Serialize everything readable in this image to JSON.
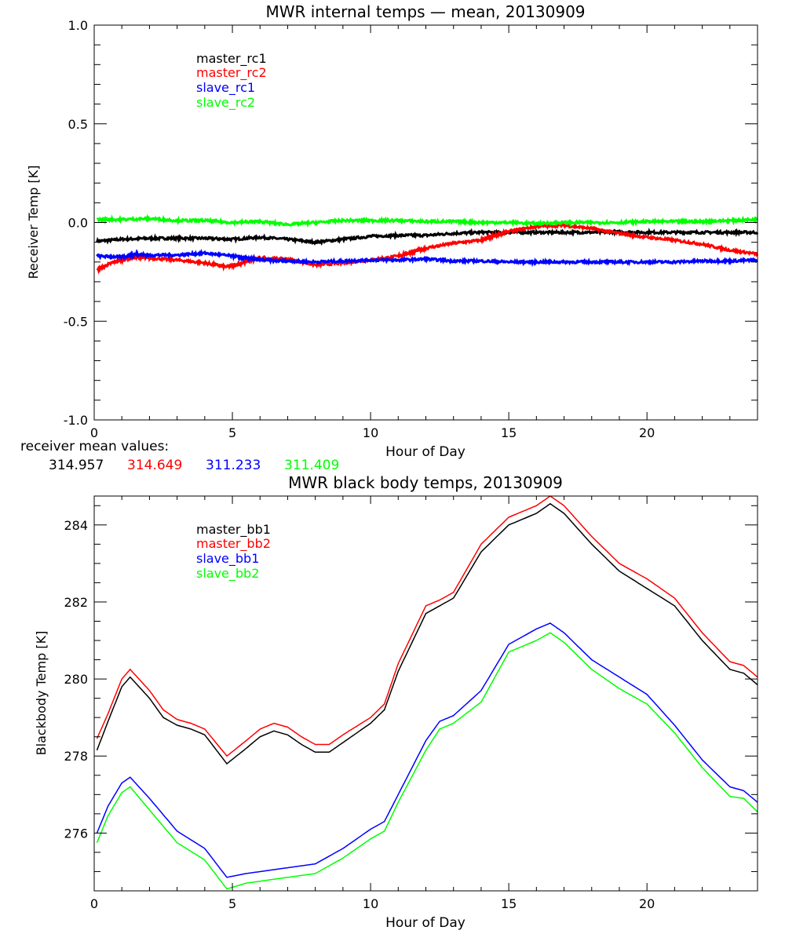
{
  "chart_data": [
    {
      "type": "line",
      "title": "MWR internal temps — mean, 20130909",
      "xlabel": "Hour of Day",
      "ylabel": "Receiver Temp [K]",
      "xlim": [
        0,
        24
      ],
      "ylim": [
        -1.0,
        1.0
      ],
      "x_ticks": [
        "0",
        "5",
        "10",
        "15",
        "20"
      ],
      "y_ticks": [
        "-1.0",
        "-0.5",
        "0.0",
        "0.5",
        "1.0"
      ],
      "grid": false,
      "legend_position": "top-left",
      "series": [
        {
          "name": "master_rc1",
          "color": "#000000",
          "x": [
            0.1,
            1,
            2,
            3,
            4,
            5,
            6,
            7,
            8,
            9,
            10,
            11,
            12,
            13,
            14,
            15,
            16,
            17,
            18,
            19,
            20,
            21,
            22,
            23,
            24
          ],
          "y": [
            -0.095,
            -0.085,
            -0.08,
            -0.08,
            -0.08,
            -0.085,
            -0.075,
            -0.085,
            -0.1,
            -0.085,
            -0.07,
            -0.065,
            -0.065,
            -0.055,
            -0.05,
            -0.05,
            -0.05,
            -0.05,
            -0.05,
            -0.048,
            -0.05,
            -0.05,
            -0.05,
            -0.05,
            -0.05
          ]
        },
        {
          "name": "master_rc2",
          "color": "#ff0000",
          "x": [
            0.1,
            0.7,
            1.5,
            2,
            3,
            4,
            4.8,
            5.5,
            6,
            7,
            8,
            9,
            10,
            11,
            11.5,
            12,
            13,
            14,
            14.5,
            15,
            16,
            17,
            18,
            19,
            20,
            21,
            22,
            23,
            24
          ],
          "y": [
            -0.24,
            -0.2,
            -0.175,
            -0.18,
            -0.19,
            -0.205,
            -0.225,
            -0.2,
            -0.18,
            -0.185,
            -0.215,
            -0.205,
            -0.19,
            -0.17,
            -0.15,
            -0.13,
            -0.105,
            -0.09,
            -0.065,
            -0.045,
            -0.02,
            -0.015,
            -0.03,
            -0.055,
            -0.075,
            -0.09,
            -0.11,
            -0.14,
            -0.16
          ]
        },
        {
          "name": "slave_rc1",
          "color": "#0000ff",
          "x": [
            0.1,
            1,
            1.5,
            2,
            3,
            4,
            5,
            5.5,
            6,
            7,
            8,
            9,
            10,
            11,
            12,
            13,
            14,
            15,
            16,
            17,
            18,
            19,
            20,
            21,
            22,
            23,
            24
          ],
          "y": [
            -0.17,
            -0.175,
            -0.16,
            -0.165,
            -0.165,
            -0.155,
            -0.17,
            -0.18,
            -0.19,
            -0.195,
            -0.2,
            -0.195,
            -0.19,
            -0.19,
            -0.185,
            -0.195,
            -0.195,
            -0.2,
            -0.2,
            -0.2,
            -0.2,
            -0.2,
            -0.2,
            -0.2,
            -0.195,
            -0.195,
            -0.19
          ]
        },
        {
          "name": "slave_rc2",
          "color": "#00ff00",
          "x": [
            0.1,
            1,
            2,
            3,
            4,
            5,
            6,
            7,
            8,
            9,
            10,
            11,
            12,
            13,
            14,
            15,
            16,
            17,
            18,
            19,
            20,
            21,
            22,
            23,
            24
          ],
          "y": [
            0.015,
            0.015,
            0.02,
            0.01,
            0.01,
            0.0,
            0.005,
            -0.01,
            0.0,
            0.01,
            0.01,
            0.01,
            0.005,
            0.005,
            0.0,
            0.0,
            -0.005,
            0.0,
            0.0,
            0.0,
            0.005,
            0.005,
            0.005,
            0.01,
            0.015
          ]
        }
      ],
      "annotation_label": "receiver mean values:",
      "annotation_values": [
        {
          "text": "314.957",
          "color": "#000000"
        },
        {
          "text": "314.649",
          "color": "#ff0000"
        },
        {
          "text": "311.233",
          "color": "#0000ff"
        },
        {
          "text": "311.409",
          "color": "#00ff00"
        }
      ]
    },
    {
      "type": "line",
      "title": "MWR black body temps, 20130909",
      "xlabel": "Hour of Day",
      "ylabel": "Blackbody Temp [K]",
      "xlim": [
        0,
        24
      ],
      "ylim": [
        274.5,
        284.75
      ],
      "x_ticks": [
        "0",
        "5",
        "10",
        "15",
        "20"
      ],
      "y_ticks": [
        "276",
        "278",
        "280",
        "282",
        "284"
      ],
      "grid": false,
      "legend_position": "top-left",
      "series": [
        {
          "name": "master_bb1",
          "color": "#000000",
          "x": [
            0.1,
            0.5,
            1,
            1.3,
            2,
            2.5,
            3,
            3.5,
            4,
            4.8,
            5.5,
            6,
            6.5,
            7,
            7.5,
            8,
            8.5,
            9,
            10,
            10.5,
            11,
            12,
            12.5,
            13,
            14,
            15,
            16,
            16.5,
            17,
            18,
            19,
            20,
            21,
            22,
            23,
            23.5,
            24
          ],
          "y": [
            278.15,
            278.9,
            279.8,
            280.05,
            279.5,
            279.0,
            278.8,
            278.7,
            278.55,
            277.8,
            278.2,
            278.5,
            278.65,
            278.55,
            278.3,
            278.1,
            278.1,
            278.35,
            278.85,
            279.2,
            280.2,
            281.7,
            281.9,
            282.1,
            283.3,
            284.0,
            284.3,
            284.55,
            284.3,
            283.5,
            282.8,
            282.35,
            281.9,
            281.0,
            280.25,
            280.15,
            279.85
          ]
        },
        {
          "name": "master_bb2",
          "color": "#ff0000",
          "x": [
            0.1,
            0.5,
            1,
            1.3,
            2,
            2.5,
            3,
            3.5,
            4,
            4.8,
            5.5,
            6,
            6.5,
            7,
            7.5,
            8,
            8.5,
            9,
            10,
            10.5,
            11,
            12,
            12.5,
            13,
            14,
            15,
            16,
            16.5,
            17,
            18,
            19,
            20,
            21,
            22,
            23,
            23.5,
            24
          ],
          "y": [
            278.45,
            279.1,
            280.0,
            280.25,
            279.7,
            279.2,
            278.95,
            278.85,
            278.7,
            278.0,
            278.4,
            278.7,
            278.85,
            278.75,
            278.5,
            278.3,
            278.3,
            278.55,
            279.0,
            279.35,
            280.4,
            281.9,
            282.05,
            282.25,
            283.5,
            284.2,
            284.5,
            284.75,
            284.5,
            283.7,
            283.0,
            282.6,
            282.1,
            281.2,
            280.45,
            280.35,
            280.05
          ]
        },
        {
          "name": "slave_bb1",
          "color": "#0000ff",
          "x": [
            0.1,
            0.5,
            1,
            1.3,
            2,
            3,
            4,
            4.8,
            5.5,
            6,
            7,
            7.5,
            8,
            9,
            10,
            10.5,
            11,
            12,
            12.5,
            13,
            14,
            15,
            16,
            16.5,
            17,
            18,
            19,
            20,
            21,
            22,
            23,
            23.5,
            24
          ],
          "y": [
            276.0,
            276.7,
            277.3,
            277.45,
            276.9,
            276.05,
            275.6,
            274.85,
            274.95,
            275.0,
            275.1,
            275.15,
            275.2,
            275.6,
            276.1,
            276.3,
            277.0,
            278.4,
            278.9,
            279.05,
            279.7,
            280.9,
            281.3,
            281.45,
            281.2,
            280.5,
            280.05,
            279.6,
            278.8,
            277.9,
            277.2,
            277.1,
            276.8
          ]
        },
        {
          "name": "slave_bb2",
          "color": "#00ff00",
          "x": [
            0.1,
            0.5,
            1,
            1.3,
            2,
            3,
            4,
            4.8,
            5.5,
            6,
            7,
            7.5,
            8,
            9,
            10,
            10.5,
            11,
            12,
            12.5,
            13,
            14,
            15,
            16,
            16.5,
            17,
            18,
            19,
            20,
            21,
            22,
            23,
            23.5,
            24
          ],
          "y": [
            275.75,
            276.45,
            277.05,
            277.2,
            276.6,
            275.75,
            275.3,
            274.55,
            274.7,
            274.75,
            274.85,
            274.9,
            274.95,
            275.35,
            275.85,
            276.05,
            276.8,
            278.15,
            278.7,
            278.85,
            279.4,
            280.7,
            281.0,
            281.2,
            280.95,
            280.25,
            279.75,
            279.35,
            278.6,
            277.7,
            276.95,
            276.9,
            276.55
          ]
        }
      ]
    }
  ]
}
